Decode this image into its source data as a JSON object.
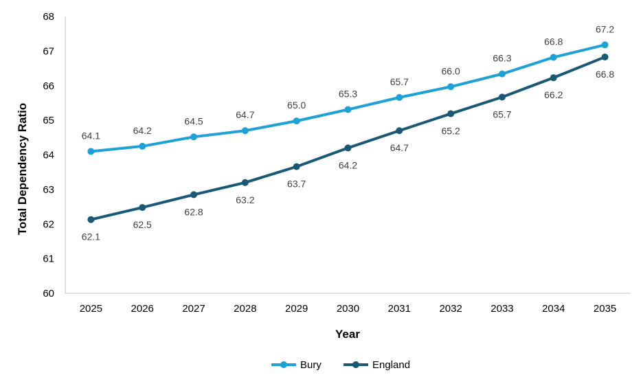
{
  "chart_data": {
    "type": "line",
    "title": "",
    "xlabel": "Year",
    "ylabel": "Total Dependency Ratio",
    "x": [
      "2025",
      "2026",
      "2027",
      "2028",
      "2029",
      "2030",
      "2031",
      "2032",
      "2033",
      "2034",
      "2035"
    ],
    "ylim": [
      60,
      68
    ],
    "yticks": [
      "60",
      "61",
      "62",
      "63",
      "64",
      "65",
      "66",
      "67",
      "68"
    ],
    "grid": false,
    "legend": "bottom",
    "series": [
      {
        "name": "Bury",
        "color": "#1ea1d6",
        "values": [
          64.1,
          64.25,
          64.52,
          64.7,
          64.98,
          65.31,
          65.66,
          65.97,
          66.34,
          66.82,
          67.18
        ],
        "labels": [
          "64.1",
          "64.2",
          "64.5",
          "64.7",
          "65.0",
          "65.3",
          "65.7",
          "66.0",
          "66.3",
          "66.8",
          "67.2"
        ]
      },
      {
        "name": "England",
        "color": "#1a5976",
        "values": [
          62.13,
          62.48,
          62.85,
          63.2,
          63.66,
          64.2,
          64.7,
          65.19,
          65.67,
          66.23,
          66.83
        ],
        "labels": [
          "62.1",
          "62.5",
          "62.8",
          "63.2",
          "63.7",
          "64.2",
          "64.7",
          "65.2",
          "65.7",
          "66.2",
          "66.8"
        ]
      }
    ]
  }
}
